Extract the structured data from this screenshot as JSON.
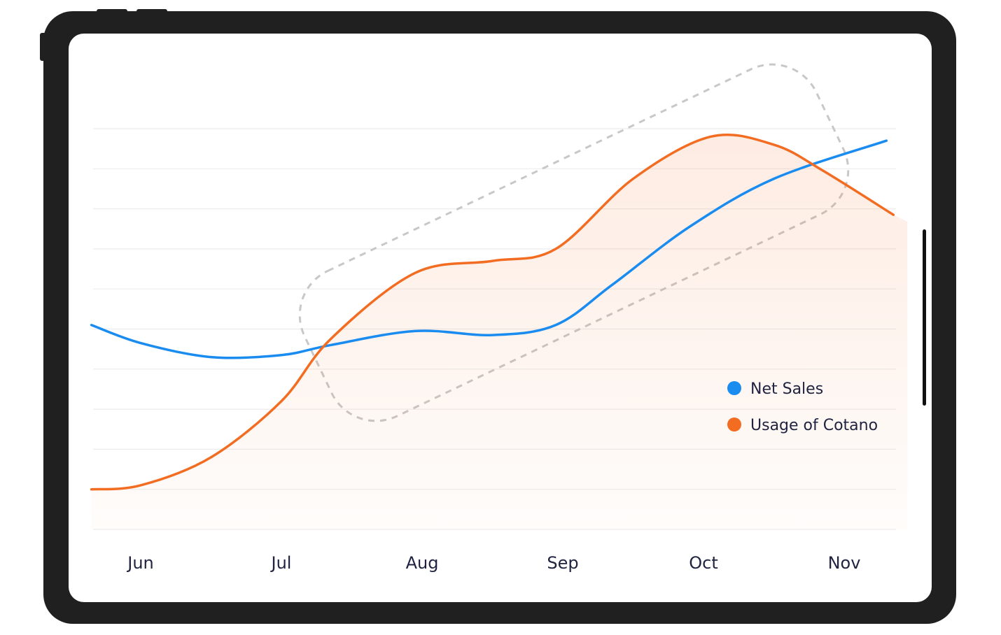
{
  "chart_data": {
    "type": "line",
    "categories": [
      "Jun",
      "Jul",
      "Aug",
      "Sep",
      "Oct",
      "Nov"
    ],
    "x_positions": [
      0.0,
      1.0,
      2.0,
      3.0,
      4.0,
      5.0
    ],
    "ylim": [
      0,
      10
    ],
    "grid": true,
    "legend_position": "bottom-right",
    "series": [
      {
        "name": "Net Sales",
        "color": "#1a8cf0",
        "x": [
          -0.35,
          0.0,
          0.5,
          1.0,
          1.35,
          1.95,
          2.5,
          2.95,
          3.35,
          3.9,
          4.5,
          5.3
        ],
        "y": [
          5.1,
          4.65,
          4.3,
          4.35,
          4.6,
          4.95,
          4.85,
          5.1,
          6.1,
          7.55,
          8.75,
          9.7
        ]
      },
      {
        "name": "Usage of Cotano",
        "color": "#f26c22",
        "x": [
          -0.35,
          0.0,
          0.5,
          1.0,
          1.35,
          1.95,
          2.5,
          2.95,
          3.5,
          4.05,
          4.5,
          4.85,
          5.35
        ],
        "y": [
          1.0,
          1.1,
          1.8,
          3.2,
          4.75,
          6.4,
          6.7,
          7.0,
          8.75,
          9.8,
          9.6,
          8.95,
          7.85
        ],
        "fill": true
      }
    ],
    "annotation": {
      "type": "dashed-rounded-rect",
      "color": "#c8c8c8"
    }
  },
  "legend": {
    "items": [
      {
        "label": "Net Sales",
        "color": "#1a8cf0"
      },
      {
        "label": "Usage of Cotano",
        "color": "#f26c22"
      }
    ]
  },
  "device": {
    "frame_color": "#202020",
    "screen_color": "#ffffff"
  }
}
